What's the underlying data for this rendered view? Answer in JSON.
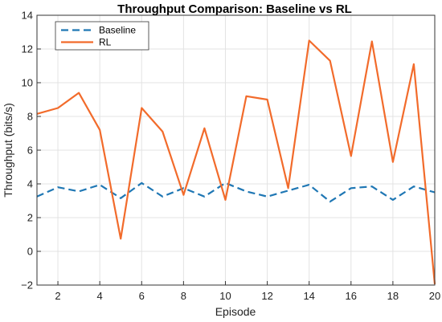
{
  "chart_data": {
    "type": "line",
    "title": "Throughput Comparison: Baseline vs RL",
    "xlabel": "Episode",
    "ylabel": "Throughput (bits/s)",
    "xlim": [
      1,
      20
    ],
    "ylim": [
      -2,
      14
    ],
    "xticks": [
      2,
      4,
      6,
      8,
      10,
      12,
      14,
      16,
      18,
      20
    ],
    "yticks": [
      -2,
      0,
      2,
      4,
      6,
      8,
      10,
      12,
      14
    ],
    "grid": true,
    "legend_position": "top-left",
    "x": [
      1,
      2,
      3,
      4,
      5,
      6,
      7,
      8,
      9,
      10,
      11,
      12,
      13,
      14,
      15,
      16,
      17,
      18,
      19,
      20
    ],
    "series": [
      {
        "name": "Baseline",
        "style": "dashed",
        "color": "#1f77b4",
        "values": [
          3.25,
          3.8,
          3.55,
          3.95,
          3.15,
          4.05,
          3.25,
          3.75,
          3.25,
          4.05,
          3.55,
          3.25,
          3.6,
          3.95,
          2.95,
          3.75,
          3.85,
          3.05,
          3.85,
          3.5
        ]
      },
      {
        "name": "RL",
        "style": "solid",
        "color": "#f26b2b",
        "values": [
          8.15,
          8.5,
          9.4,
          7.2,
          0.75,
          8.5,
          7.1,
          3.35,
          7.3,
          3.05,
          9.2,
          9.0,
          3.75,
          12.5,
          11.3,
          5.65,
          12.45,
          5.3,
          11.1,
          -1.95
        ]
      }
    ]
  }
}
